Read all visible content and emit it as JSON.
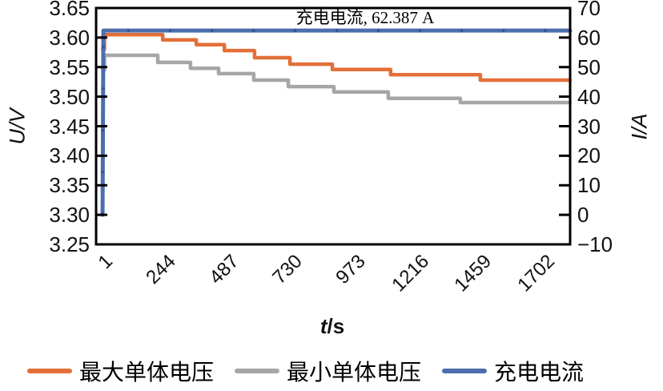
{
  "chart_data": {
    "type": "line",
    "annotation": "充电电流, 62.387 A",
    "x_axis": {
      "title": "t/s",
      "title_italic": "t",
      "title_rest": "/s",
      "domain": [
        -24,
        1798
      ],
      "tick_values": [
        1,
        244,
        487,
        730,
        973,
        1216,
        1459,
        1702
      ],
      "tick_labels": [
        "1",
        "244",
        "487",
        "730",
        "973",
        "1216",
        "1459",
        "1702"
      ]
    },
    "y_left": {
      "title": "U/V",
      "domain": [
        3.25,
        3.65
      ],
      "tick_values": [
        3.65,
        3.6,
        3.55,
        3.5,
        3.45,
        3.4,
        3.35,
        3.3,
        3.25
      ],
      "tick_labels": [
        "3.65",
        "3.60",
        "3.55",
        "3.50",
        "3.45",
        "3.40",
        "3.35",
        "3.30",
        "3.25"
      ]
    },
    "y_right": {
      "title": "I/A",
      "domain": [
        -10,
        70
      ],
      "tick_values": [
        70,
        60,
        50,
        40,
        30,
        20,
        10,
        0,
        -10
      ],
      "tick_labels": [
        "70",
        "60",
        "50",
        "40",
        "30",
        "20",
        "10",
        "0",
        "−10"
      ]
    },
    "series": [
      {
        "name": "最大单体电压",
        "color": "#e36f39",
        "axis": "left",
        "step": true,
        "points": [
          [
            1,
            3.58
          ],
          [
            8,
            3.605
          ],
          [
            232,
            3.596
          ],
          [
            361,
            3.588
          ],
          [
            469,
            3.578
          ],
          [
            585,
            3.566
          ],
          [
            721,
            3.555
          ],
          [
            884,
            3.546
          ],
          [
            1108,
            3.537
          ],
          [
            1453,
            3.528
          ],
          [
            1798,
            3.528
          ]
        ]
      },
      {
        "name": "最小单体电压",
        "color": "#a6a6a6",
        "axis": "left",
        "step": true,
        "points": [
          [
            1,
            3.545
          ],
          [
            8,
            3.57
          ],
          [
            213,
            3.558
          ],
          [
            339,
            3.548
          ],
          [
            447,
            3.539
          ],
          [
            582,
            3.528
          ],
          [
            715,
            3.517
          ],
          [
            890,
            3.508
          ],
          [
            1099,
            3.497
          ],
          [
            1376,
            3.49
          ],
          [
            1798,
            3.49
          ]
        ]
      },
      {
        "name": "充电电流",
        "color": "#4c6eae",
        "axis": "right",
        "step": false,
        "points": [
          [
            1,
            0
          ],
          [
            4,
            62.387
          ],
          [
            1798,
            62.387
          ]
        ]
      }
    ],
    "legend_position": "bottom",
    "grid": false,
    "colors": {
      "axis": "#000000",
      "current_markers": "#3b548a",
      "background": "#ffffff"
    }
  }
}
